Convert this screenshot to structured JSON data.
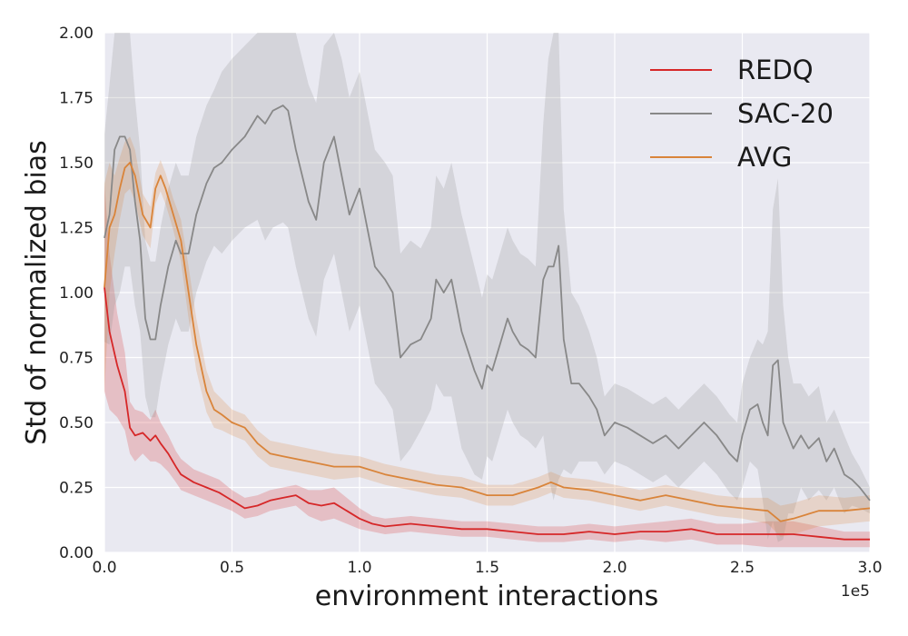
{
  "chart_data": {
    "type": "line",
    "title": "",
    "xlabel": "environment interactions",
    "ylabel": "Std of normalized bias",
    "x_offset_label": "1e5",
    "xlim": [
      0,
      3.0
    ],
    "ylim": [
      0,
      2.0
    ],
    "xticks": [
      0,
      0.5,
      1.0,
      1.5,
      2.0,
      2.5,
      3.0
    ],
    "xtick_labels": [
      "0.0",
      "0.5",
      "1.0",
      "1.5",
      "2.0",
      "2.5",
      "3.0"
    ],
    "yticks": [
      0,
      0.25,
      0.5,
      0.75,
      1.0,
      1.25,
      1.5,
      1.75,
      2.0
    ],
    "ytick_labels": [
      "0.00",
      "0.25",
      "0.50",
      "0.75",
      "1.00",
      "1.25",
      "1.50",
      "1.75",
      "2.00"
    ],
    "grid": true,
    "legend_position": "top-right",
    "series": [
      {
        "name": "REDQ",
        "color": "#d62728",
        "x": [
          0,
          0.02,
          0.05,
          0.08,
          0.1,
          0.12,
          0.15,
          0.18,
          0.2,
          0.22,
          0.25,
          0.28,
          0.3,
          0.35,
          0.4,
          0.45,
          0.5,
          0.55,
          0.6,
          0.65,
          0.7,
          0.75,
          0.8,
          0.85,
          0.9,
          0.95,
          1.0,
          1.05,
          1.1,
          1.2,
          1.3,
          1.4,
          1.5,
          1.6,
          1.7,
          1.8,
          1.9,
          2.0,
          2.1,
          2.2,
          2.3,
          2.4,
          2.5,
          2.6,
          2.7,
          2.8,
          2.9,
          3.0
        ],
        "y": [
          1.02,
          0.85,
          0.72,
          0.62,
          0.48,
          0.45,
          0.46,
          0.43,
          0.45,
          0.42,
          0.38,
          0.33,
          0.3,
          0.27,
          0.25,
          0.23,
          0.2,
          0.17,
          0.18,
          0.2,
          0.21,
          0.22,
          0.19,
          0.18,
          0.19,
          0.16,
          0.13,
          0.11,
          0.1,
          0.11,
          0.1,
          0.09,
          0.09,
          0.08,
          0.07,
          0.07,
          0.08,
          0.07,
          0.08,
          0.08,
          0.09,
          0.07,
          0.07,
          0.07,
          0.07,
          0.06,
          0.05,
          0.05
        ],
        "band_half_width": [
          0.4,
          0.3,
          0.2,
          0.15,
          0.1,
          0.1,
          0.08,
          0.08,
          0.1,
          0.08,
          0.07,
          0.06,
          0.06,
          0.05,
          0.05,
          0.05,
          0.04,
          0.04,
          0.04,
          0.04,
          0.04,
          0.04,
          0.05,
          0.06,
          0.06,
          0.05,
          0.04,
          0.03,
          0.03,
          0.03,
          0.03,
          0.03,
          0.03,
          0.03,
          0.03,
          0.03,
          0.03,
          0.03,
          0.03,
          0.04,
          0.04,
          0.04,
          0.04,
          0.05,
          0.05,
          0.04,
          0.03,
          0.03
        ]
      },
      {
        "name": "SAC-20",
        "color": "#888888",
        "x": [
          0,
          0.02,
          0.04,
          0.06,
          0.08,
          0.1,
          0.12,
          0.14,
          0.16,
          0.18,
          0.2,
          0.22,
          0.25,
          0.28,
          0.3,
          0.33,
          0.36,
          0.4,
          0.43,
          0.46,
          0.5,
          0.55,
          0.6,
          0.63,
          0.66,
          0.7,
          0.72,
          0.75,
          0.8,
          0.83,
          0.86,
          0.9,
          0.93,
          0.96,
          1.0,
          1.03,
          1.06,
          1.1,
          1.13,
          1.16,
          1.2,
          1.24,
          1.28,
          1.3,
          1.33,
          1.36,
          1.4,
          1.45,
          1.48,
          1.5,
          1.52,
          1.55,
          1.58,
          1.6,
          1.63,
          1.66,
          1.69,
          1.72,
          1.74,
          1.76,
          1.78,
          1.8,
          1.83,
          1.86,
          1.9,
          1.93,
          1.96,
          2.0,
          2.05,
          2.1,
          2.15,
          2.2,
          2.25,
          2.3,
          2.35,
          2.4,
          2.45,
          2.48,
          2.5,
          2.53,
          2.56,
          2.58,
          2.6,
          2.62,
          2.64,
          2.66,
          2.68,
          2.7,
          2.73,
          2.76,
          2.8,
          2.83,
          2.86,
          2.9,
          2.93,
          2.96,
          3.0
        ],
        "y": [
          1.21,
          1.3,
          1.55,
          1.6,
          1.6,
          1.55,
          1.35,
          1.2,
          0.9,
          0.82,
          0.82,
          0.95,
          1.1,
          1.2,
          1.15,
          1.15,
          1.3,
          1.42,
          1.48,
          1.5,
          1.55,
          1.6,
          1.68,
          1.65,
          1.7,
          1.72,
          1.7,
          1.55,
          1.35,
          1.28,
          1.5,
          1.6,
          1.45,
          1.3,
          1.4,
          1.25,
          1.1,
          1.05,
          1.0,
          0.75,
          0.8,
          0.82,
          0.9,
          1.05,
          1.0,
          1.05,
          0.85,
          0.7,
          0.63,
          0.72,
          0.7,
          0.8,
          0.9,
          0.85,
          0.8,
          0.78,
          0.75,
          1.05,
          1.1,
          1.1,
          1.18,
          0.82,
          0.65,
          0.65,
          0.6,
          0.55,
          0.45,
          0.5,
          0.48,
          0.45,
          0.42,
          0.45,
          0.4,
          0.45,
          0.5,
          0.45,
          0.38,
          0.35,
          0.45,
          0.55,
          0.57,
          0.5,
          0.45,
          0.72,
          0.74,
          0.5,
          0.45,
          0.4,
          0.45,
          0.4,
          0.44,
          0.35,
          0.4,
          0.3,
          0.28,
          0.25,
          0.2
        ],
        "band_half_width": [
          0.4,
          0.5,
          0.6,
          0.6,
          0.5,
          0.45,
          0.4,
          0.35,
          0.3,
          0.3,
          0.3,
          0.3,
          0.3,
          0.3,
          0.3,
          0.3,
          0.3,
          0.3,
          0.3,
          0.35,
          0.35,
          0.35,
          0.4,
          0.45,
          0.45,
          0.45,
          0.45,
          0.45,
          0.45,
          0.45,
          0.45,
          0.45,
          0.45,
          0.45,
          0.45,
          0.45,
          0.45,
          0.45,
          0.45,
          0.4,
          0.4,
          0.35,
          0.35,
          0.4,
          0.4,
          0.45,
          0.45,
          0.4,
          0.35,
          0.35,
          0.35,
          0.35,
          0.35,
          0.35,
          0.35,
          0.35,
          0.35,
          0.6,
          0.8,
          0.9,
          0.9,
          0.5,
          0.35,
          0.3,
          0.25,
          0.2,
          0.15,
          0.15,
          0.15,
          0.15,
          0.15,
          0.15,
          0.15,
          0.15,
          0.15,
          0.15,
          0.15,
          0.15,
          0.2,
          0.2,
          0.25,
          0.3,
          0.4,
          0.6,
          0.7,
          0.45,
          0.3,
          0.25,
          0.2,
          0.2,
          0.2,
          0.15,
          0.15,
          0.15,
          0.1,
          0.08,
          0.05
        ]
      },
      {
        "name": "AVG",
        "color": "#d9843a",
        "x": [
          0,
          0.02,
          0.04,
          0.06,
          0.08,
          0.1,
          0.12,
          0.15,
          0.18,
          0.2,
          0.22,
          0.24,
          0.27,
          0.3,
          0.33,
          0.36,
          0.4,
          0.43,
          0.46,
          0.5,
          0.55,
          0.6,
          0.65,
          0.7,
          0.8,
          0.9,
          1.0,
          1.1,
          1.2,
          1.3,
          1.4,
          1.5,
          1.6,
          1.7,
          1.75,
          1.8,
          1.9,
          2.0,
          2.1,
          2.2,
          2.3,
          2.4,
          2.5,
          2.6,
          2.65,
          2.7,
          2.8,
          2.9,
          3.0
        ],
        "y": [
          1.02,
          1.25,
          1.3,
          1.4,
          1.48,
          1.5,
          1.45,
          1.3,
          1.25,
          1.4,
          1.45,
          1.4,
          1.3,
          1.2,
          1.0,
          0.8,
          0.62,
          0.55,
          0.53,
          0.5,
          0.48,
          0.42,
          0.38,
          0.37,
          0.35,
          0.33,
          0.33,
          0.3,
          0.28,
          0.26,
          0.25,
          0.22,
          0.22,
          0.25,
          0.27,
          0.25,
          0.24,
          0.22,
          0.2,
          0.22,
          0.2,
          0.18,
          0.17,
          0.16,
          0.12,
          0.13,
          0.16,
          0.16,
          0.17
        ],
        "band_half_width": [
          0.4,
          0.25,
          0.15,
          0.12,
          0.1,
          0.1,
          0.1,
          0.08,
          0.08,
          0.06,
          0.06,
          0.06,
          0.06,
          0.08,
          0.1,
          0.1,
          0.08,
          0.07,
          0.06,
          0.05,
          0.05,
          0.05,
          0.05,
          0.05,
          0.05,
          0.05,
          0.04,
          0.04,
          0.04,
          0.04,
          0.04,
          0.04,
          0.04,
          0.04,
          0.04,
          0.04,
          0.04,
          0.04,
          0.04,
          0.04,
          0.04,
          0.04,
          0.04,
          0.05,
          0.06,
          0.06,
          0.06,
          0.05,
          0.05
        ]
      }
    ]
  }
}
